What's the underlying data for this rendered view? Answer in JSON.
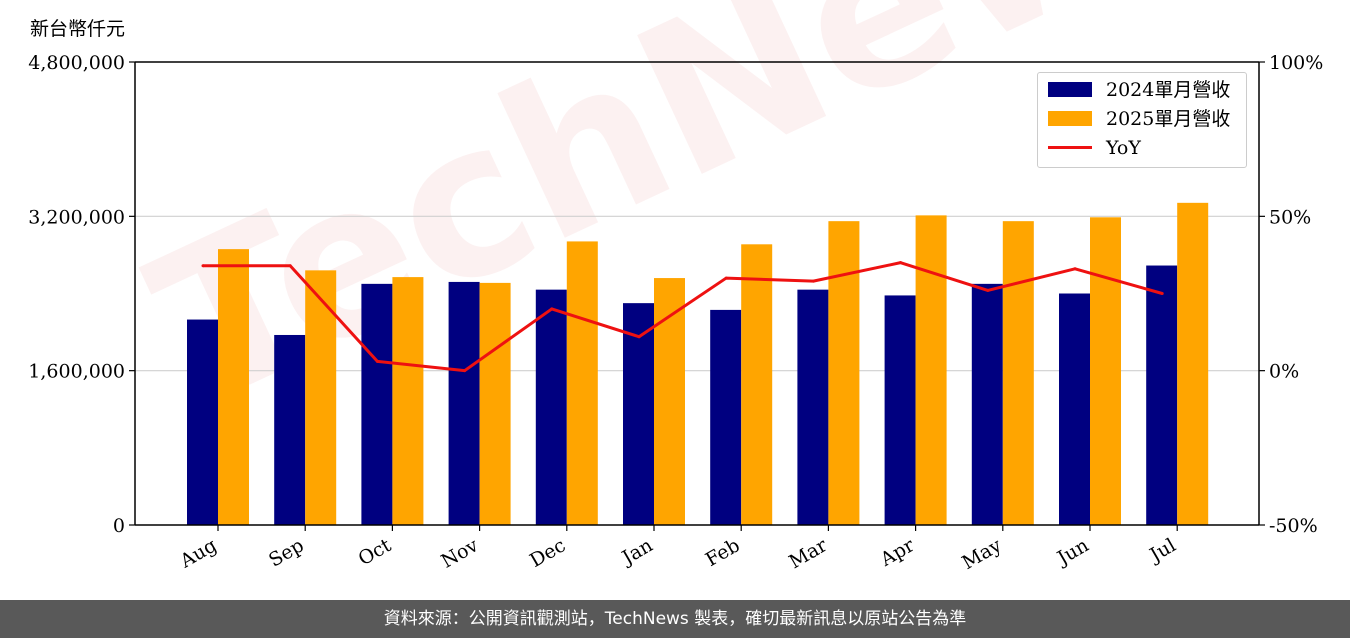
{
  "unit_label": "新台幣仟元",
  "watermark": "TechNews",
  "footer": "資料來源：公開資訊觀測站，TechNews 製表，確切最新訊息以原站公告為準",
  "colors": {
    "bar_2024": "#000080",
    "bar_2025": "#FFA500",
    "yoy_line": "#EE1111",
    "footer_bg": "#595959"
  },
  "legend": {
    "items": [
      {
        "label": "2024單月營收",
        "kind": "bar",
        "color": "#000080"
      },
      {
        "label": "2025單月營收",
        "kind": "bar",
        "color": "#FFA500"
      },
      {
        "label": "YoY",
        "kind": "line",
        "color": "#EE1111"
      }
    ]
  },
  "chart_data": {
    "type": "bar",
    "categories": [
      "Aug",
      "Sep",
      "Oct",
      "Nov",
      "Dec",
      "Jan",
      "Feb",
      "Mar",
      "Apr",
      "May",
      "Jun",
      "Jul"
    ],
    "series": [
      {
        "name": "2024單月營收",
        "values": [
          2130000,
          1970000,
          2500000,
          2520000,
          2440000,
          2300000,
          2230000,
          2440000,
          2380000,
          2500000,
          2400000,
          2690000
        ]
      },
      {
        "name": "2025單月營收",
        "values": [
          2860000,
          2640000,
          2570000,
          2510000,
          2940000,
          2560000,
          2910000,
          3150000,
          3210000,
          3150000,
          3190000,
          3340000
        ]
      }
    ],
    "line_series": {
      "name": "YoY",
      "axis": "right",
      "values": [
        34,
        34,
        3,
        0,
        20,
        11,
        30,
        29,
        35,
        26,
        33,
        25
      ]
    },
    "ylim": [
      0,
      4800000
    ],
    "y2lim": [
      -50,
      100
    ],
    "yticks": [
      "0",
      "1,600,000",
      "3,200,000",
      "4,800,000"
    ],
    "y2ticks": [
      "-50%",
      "0%",
      "50%",
      "100%"
    ],
    "grid": "horizontal",
    "legend_position": "top-right"
  }
}
